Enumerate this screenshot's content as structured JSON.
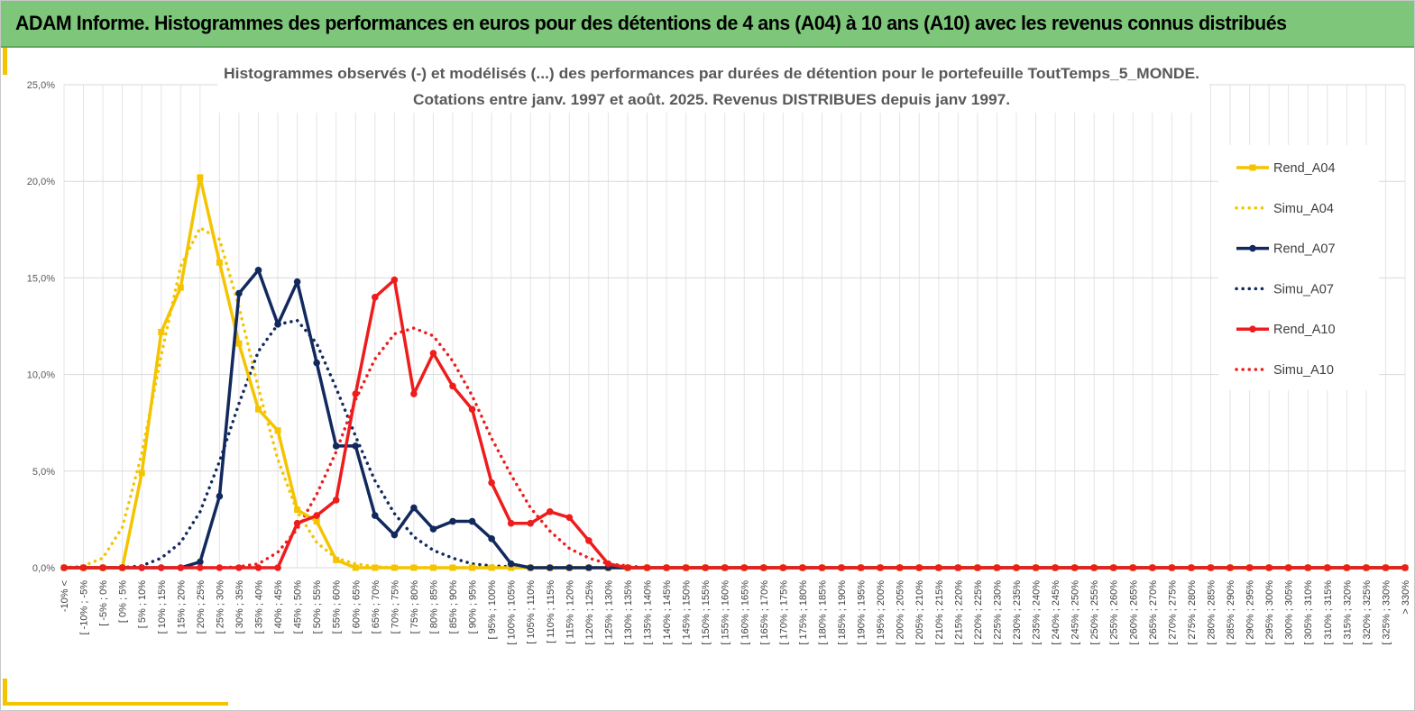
{
  "banner": {
    "title": "ADAM Informe. Histogrammes des performances en euros pour des détentions de 4 ans (A04) à 10 ans (A10) avec les revenus connus distribués"
  },
  "colors": {
    "banner_bg": "#7dc67a",
    "accent": "#f5c400",
    "rend_a04": "#f5c400",
    "rend_a07": "#12295e",
    "rend_a10": "#ee1c1c",
    "grid": "#d9d9d9"
  },
  "chart_data": {
    "type": "line",
    "title_line1": "Histogrammes observés (-) et modélisés (...) des performances par durées de détention pour  le portefeuille ToutTemps_5_MONDE.",
    "title_line2": "Cotations  entre janv. 1997 et août. 2025. Revenus DISTRIBUES depuis janv 1997.",
    "y_tick_labels": [
      "0,0%",
      "5,0%",
      "10,0%",
      "15,0%",
      "20,0%",
      "25,0%"
    ],
    "ylim": [
      0,
      25
    ],
    "grid": true,
    "legend_position": "right",
    "categories": [
      "-10% <",
      "[ -10% ; -5%",
      "[ -5% ; 0%",
      "[ 0% ; 5%",
      "[ 5% ; 10%",
      "[ 10% ; 15%",
      "[ 15% ; 20%",
      "[ 20% ; 25%",
      "[ 25% ; 30%",
      "[ 30% ; 35%",
      "[ 35% ; 40%",
      "[ 40% ; 45%",
      "[ 45% ; 50%",
      "[ 50% ; 55%",
      "[ 55% ; 60%",
      "[ 60% ; 65%",
      "[ 65% ; 70%",
      "[ 70% ; 75%",
      "[ 75% ; 80%",
      "[ 80% ; 85%",
      "[ 85% ; 90%",
      "[ 90% ; 95%",
      "[ 95% ; 100%",
      "[ 100% ; 105%",
      "[ 105% ; 110%",
      "[ 110% ; 115%",
      "[ 115% ; 120%",
      "[ 120% ; 125%",
      "[ 125% ; 130%",
      "[ 130% ; 135%",
      "[ 135% ; 140%",
      "[ 140% ; 145%",
      "[ 145% ; 150%",
      "[ 150% ; 155%",
      "[ 155% ; 160%",
      "[ 160% ; 165%",
      "[ 165% ; 170%",
      "[ 170% ; 175%",
      "[ 175% ; 180%",
      "[ 180% ; 185%",
      "[ 185% ; 190%",
      "[ 190% ; 195%",
      "[ 195% ; 200%",
      "[ 200% ; 205%",
      "[ 205% ; 210%",
      "[ 210% ; 215%",
      "[ 215% ; 220%",
      "[ 220% ; 225%",
      "[ 225% ; 230%",
      "[ 230% ; 235%",
      "[ 235% ; 240%",
      "[ 240% ; 245%",
      "[ 245% ; 250%",
      "[ 250% ; 255%",
      "[ 255% ; 260%",
      "[ 260% ; 265%",
      "[ 265% ; 270%",
      "[ 270% ; 275%",
      "[ 275% ; 280%",
      "[ 280% ; 285%",
      "[ 285% ; 290%",
      "[ 290% ; 295%",
      "[ 295% ; 300%",
      "[ 300% ; 305%",
      "[ 305% ; 310%",
      "[ 310% ; 315%",
      "[ 315% ; 320%",
      "[ 320% ; 325%",
      "[ 325% ; 330%",
      "> 330%"
    ],
    "series": [
      {
        "name": "Rend_A04",
        "style": "solid",
        "marker": "square",
        "color": "#f5c400",
        "values": [
          0,
          0,
          0,
          0,
          4.9,
          12.2,
          14.5,
          20.2,
          15.8,
          11.6,
          8.2,
          7.1,
          3.0,
          2.4,
          0.4,
          0,
          0,
          0,
          0,
          0,
          0,
          0,
          0,
          0,
          0,
          0,
          0,
          0,
          0,
          0,
          0,
          0,
          0,
          0,
          0,
          0,
          0,
          0,
          0,
          0,
          0,
          0,
          0,
          0,
          0,
          0,
          0,
          0,
          0,
          0,
          0,
          0,
          0,
          0,
          0,
          0,
          0,
          0,
          0,
          0,
          0,
          0,
          0,
          0,
          0,
          0,
          0,
          0,
          0,
          0
        ]
      },
      {
        "name": "Simu_A04",
        "style": "dotted",
        "color": "#f5c400",
        "values": [
          0.0,
          0.1,
          0.5,
          2.1,
          5.9,
          11.0,
          15.6,
          17.6,
          17.0,
          13.5,
          9.3,
          5.6,
          2.9,
          1.3,
          0.5,
          0.2,
          0.05,
          0,
          0,
          0,
          0,
          0,
          0,
          0,
          0,
          0,
          0,
          0,
          0,
          0,
          0,
          0,
          0,
          0,
          0,
          0,
          0,
          0,
          0,
          0,
          0,
          0,
          0,
          0,
          0,
          0,
          0,
          0,
          0,
          0,
          0,
          0,
          0,
          0,
          0,
          0,
          0,
          0,
          0,
          0,
          0,
          0,
          0,
          0,
          0,
          0,
          0,
          0,
          0,
          0
        ]
      },
      {
        "name": "Rend_A07",
        "style": "solid",
        "marker": "circle",
        "color": "#12295e",
        "values": [
          0,
          0,
          0,
          0,
          0,
          0,
          0,
          0.3,
          3.7,
          14.2,
          15.4,
          12.6,
          14.8,
          10.6,
          6.3,
          6.3,
          2.7,
          1.7,
          3.1,
          2.0,
          2.4,
          2.4,
          1.5,
          0.2,
          0,
          0,
          0,
          0,
          0,
          0,
          0,
          0,
          0,
          0,
          0,
          0,
          0,
          0,
          0,
          0,
          0,
          0,
          0,
          0,
          0,
          0,
          0,
          0,
          0,
          0,
          0,
          0,
          0,
          0,
          0,
          0,
          0,
          0,
          0,
          0,
          0,
          0,
          0,
          0,
          0,
          0,
          0,
          0,
          0,
          0
        ]
      },
      {
        "name": "Simu_A07",
        "style": "dotted",
        "color": "#12295e",
        "values": [
          0,
          0,
          0,
          0,
          0.1,
          0.5,
          1.3,
          2.9,
          5.5,
          8.5,
          11.2,
          12.6,
          12.8,
          11.6,
          9.3,
          6.8,
          4.5,
          2.8,
          1.6,
          0.9,
          0.5,
          0.2,
          0.1,
          0.05,
          0,
          0,
          0,
          0,
          0,
          0,
          0,
          0,
          0,
          0,
          0,
          0,
          0,
          0,
          0,
          0,
          0,
          0,
          0,
          0,
          0,
          0,
          0,
          0,
          0,
          0,
          0,
          0,
          0,
          0,
          0,
          0,
          0,
          0,
          0,
          0,
          0,
          0,
          0,
          0,
          0,
          0,
          0,
          0,
          0,
          0
        ]
      },
      {
        "name": "Rend_A10",
        "style": "solid",
        "marker": "circle",
        "color": "#ee1c1c",
        "values": [
          0,
          0,
          0,
          0,
          0,
          0,
          0,
          0,
          0,
          0,
          0,
          0,
          2.3,
          2.7,
          3.5,
          9.0,
          14.0,
          14.9,
          9.0,
          11.1,
          9.4,
          8.2,
          4.4,
          2.3,
          2.3,
          2.9,
          2.6,
          1.4,
          0.2,
          0,
          0,
          0,
          0,
          0,
          0,
          0,
          0,
          0,
          0,
          0,
          0,
          0,
          0,
          0,
          0,
          0,
          0,
          0,
          0,
          0,
          0,
          0,
          0,
          0,
          0,
          0,
          0,
          0,
          0,
          0,
          0,
          0,
          0,
          0,
          0,
          0,
          0,
          0,
          0,
          0
        ]
      },
      {
        "name": "Simu_A10",
        "style": "dotted",
        "color": "#ee1c1c",
        "values": [
          0,
          0,
          0,
          0,
          0,
          0,
          0,
          0,
          0,
          0.05,
          0.2,
          0.8,
          2.0,
          3.8,
          6.0,
          8.7,
          10.8,
          12.1,
          12.4,
          12.0,
          10.7,
          8.9,
          6.7,
          4.8,
          3.1,
          1.9,
          1.0,
          0.5,
          0.2,
          0.1,
          0,
          0,
          0,
          0,
          0,
          0,
          0,
          0,
          0,
          0,
          0,
          0,
          0,
          0,
          0,
          0,
          0,
          0,
          0,
          0,
          0,
          0,
          0,
          0,
          0,
          0,
          0,
          0,
          0,
          0,
          0,
          0,
          0,
          0,
          0,
          0,
          0,
          0,
          0,
          0
        ]
      }
    ]
  }
}
